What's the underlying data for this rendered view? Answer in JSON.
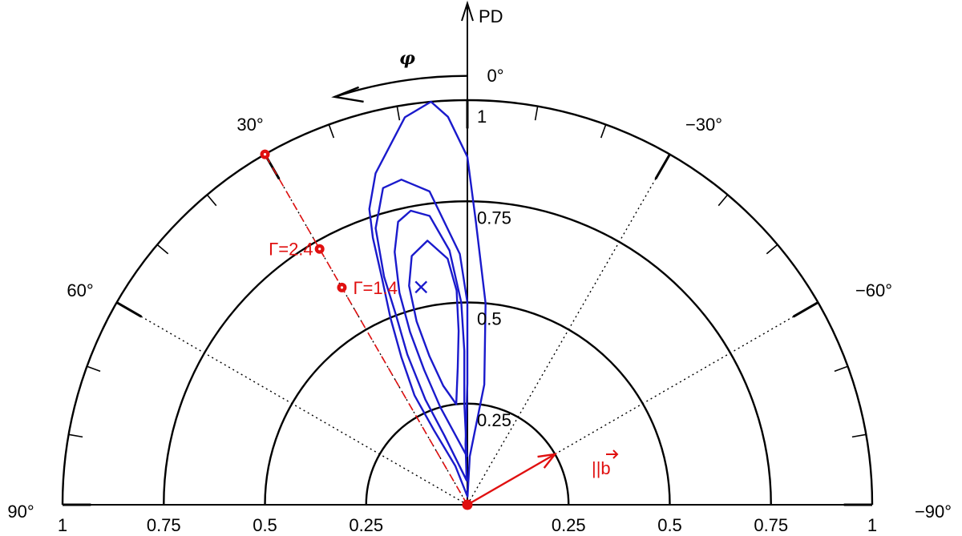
{
  "chart_data": {
    "type": "polar-contour",
    "axes": {
      "pd_label": "PD",
      "phi_label": "φ",
      "radial_range": [
        0,
        1
      ],
      "angle_range_deg": [
        -90,
        90
      ],
      "radial_rings": [
        0.25,
        0.5,
        0.75,
        1
      ],
      "radial_tick_labels": [
        "0.25",
        "0.5",
        "0.75",
        "1"
      ],
      "bottom_tick_labels_left": [
        "1",
        "0.75",
        "0.5",
        "0.25"
      ],
      "bottom_tick_labels_right": [
        "0.25",
        "0.5",
        "0.75",
        "1"
      ],
      "angle_lines_deg": [
        60,
        30,
        -30,
        -60
      ],
      "angle_labels": [
        {
          "angle": 90,
          "text": "90°"
        },
        {
          "angle": 60,
          "text": "60°"
        },
        {
          "angle": 30,
          "text": "30°"
        },
        {
          "angle": 0,
          "text": "0°"
        },
        {
          "angle": -30,
          "text": "−30°"
        },
        {
          "angle": -60,
          "text": "−60°"
        },
        {
          "angle": -90,
          "text": "−90°"
        }
      ],
      "minor_tick_step_deg": 10
    },
    "contours": [
      {
        "name": "contour-outer",
        "points": [
          [
            0.02,
            -0.02
          ],
          [
            0.12,
            -0.05
          ],
          [
            0.3,
            -0.14
          ],
          [
            0.5,
            -0.09
          ],
          [
            0.7,
            -0.03
          ],
          [
            0.86,
            0.0
          ],
          [
            0.96,
            0.05
          ],
          [
            1.0,
            0.09
          ],
          [
            0.97,
            0.16
          ],
          [
            0.85,
            0.27
          ],
          [
            0.77,
            0.32
          ],
          [
            0.7,
            0.34
          ],
          [
            0.6,
            0.36
          ],
          [
            0.5,
            0.39
          ],
          [
            0.4,
            0.42
          ],
          [
            0.3,
            0.45
          ],
          [
            0.2,
            0.42
          ],
          [
            0.1,
            0.3
          ],
          [
            0.02,
            -0.02
          ]
        ]
      },
      {
        "name": "contour-2",
        "points": [
          [
            0.06,
            0.03
          ],
          [
            0.15,
            0.03
          ],
          [
            0.3,
            0.0
          ],
          [
            0.5,
            0.0
          ],
          [
            0.62,
            0.03
          ],
          [
            0.78,
            0.12
          ],
          [
            0.82,
            0.2
          ],
          [
            0.81,
            0.26
          ],
          [
            0.72,
            0.32
          ],
          [
            0.6,
            0.35
          ],
          [
            0.5,
            0.36
          ],
          [
            0.4,
            0.38
          ],
          [
            0.28,
            0.38
          ],
          [
            0.18,
            0.32
          ],
          [
            0.06,
            0.03
          ]
        ]
      },
      {
        "name": "contour-3",
        "points": [
          [
            0.12,
            0.01
          ],
          [
            0.25,
            0.03
          ],
          [
            0.38,
            0.02
          ],
          [
            0.5,
            0.03
          ],
          [
            0.63,
            0.07
          ],
          [
            0.72,
            0.13
          ],
          [
            0.74,
            0.19
          ],
          [
            0.72,
            0.24
          ],
          [
            0.65,
            0.28
          ],
          [
            0.55,
            0.31
          ],
          [
            0.45,
            0.32
          ],
          [
            0.35,
            0.31
          ],
          [
            0.25,
            0.27
          ],
          [
            0.12,
            0.01
          ]
        ]
      },
      {
        "name": "contour-inner",
        "points": [
          [
            0.25,
            0.11
          ],
          [
            0.34,
            0.07
          ],
          [
            0.43,
            0.05
          ],
          [
            0.53,
            0.05
          ],
          [
            0.61,
            0.08
          ],
          [
            0.66,
            0.15
          ],
          [
            0.63,
            0.22
          ],
          [
            0.56,
            0.26
          ],
          [
            0.47,
            0.27
          ],
          [
            0.38,
            0.25
          ],
          [
            0.3,
            0.2
          ],
          [
            0.25,
            0.11
          ]
        ]
      }
    ],
    "best_fit": {
      "pd": 0.55,
      "phi_deg": 12,
      "marker": "×"
    },
    "points": [
      {
        "pd": 1.0,
        "phi_deg": 30,
        "label": ""
      },
      {
        "pd": 0.73,
        "phi_deg": 30,
        "label": "Γ=2.4"
      },
      {
        "pd": 0.62,
        "phi_deg": 30,
        "label": "Γ=1.4"
      }
    ],
    "b_arrow": {
      "angle_deg": -60,
      "length_pd": 0.25,
      "label": "||b"
    },
    "colors": {
      "axes": "#000000",
      "contours": "#1a1acc",
      "points": "#e01010",
      "best_fit": "#1a1acc"
    }
  }
}
